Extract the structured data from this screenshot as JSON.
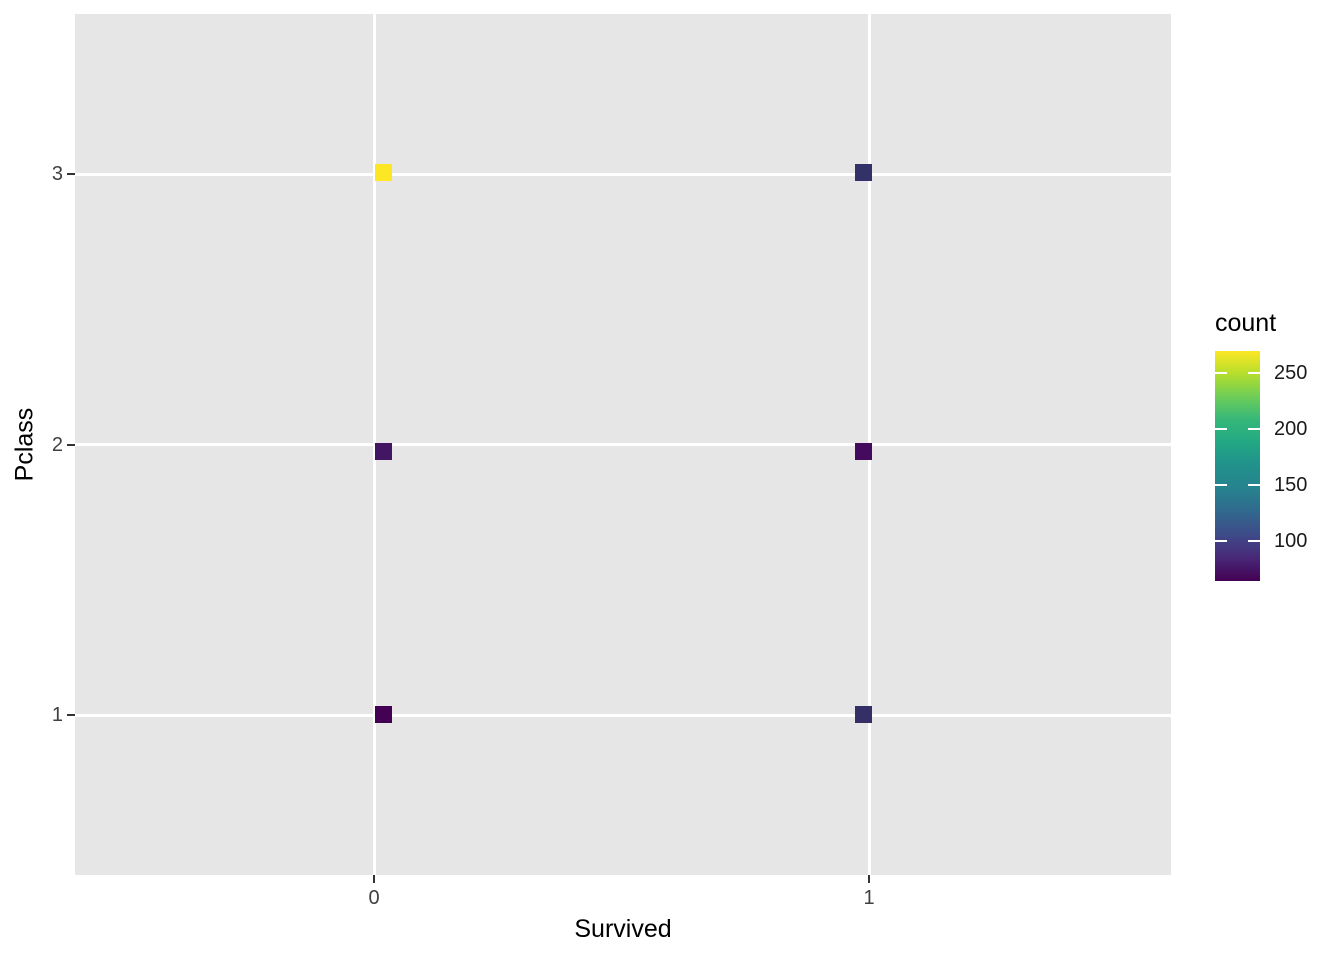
{
  "figure": {
    "background": "#FFFFFF",
    "panel_background": "#E6E6E6",
    "grid_color": "#FFFFFF",
    "axis_tick_color": "#333333",
    "tick_label_color": "#404040",
    "axis_title_color": "#000000"
  },
  "chart_data": {
    "type": "scatter",
    "marker": "square",
    "title": "",
    "xlabel": "Survived",
    "ylabel": "Pclass",
    "x_ticks": [
      "0",
      "1"
    ],
    "x_tick_values": [
      0,
      1
    ],
    "y_ticks": [
      "1",
      "2",
      "3"
    ],
    "y_tick_values": [
      1,
      2,
      3
    ],
    "xlim": [
      -0.6,
      1.6
    ],
    "ylim": [
      0.4,
      3.6
    ],
    "grid": "major-only",
    "legend": {
      "title": "count",
      "position": "right",
      "tick_labels": [
        "100",
        "150",
        "200",
        "250"
      ],
      "tick_values": [
        100,
        150,
        200,
        250
      ],
      "range": [
        64,
        270
      ],
      "colormap": "viridis",
      "colormap_stops": [
        "#440154",
        "#482878",
        "#3E4A89",
        "#31688E",
        "#26828E",
        "#21918C",
        "#22A884",
        "#35B779",
        "#6DCD59",
        "#B4DE2C",
        "#FDE725"
      ]
    },
    "points": [
      {
        "x": 0,
        "y": 1,
        "count": 64,
        "color": "#440154"
      },
      {
        "x": 1,
        "y": 1,
        "count": 122,
        "color": "#343067"
      },
      {
        "x": 0,
        "y": 2,
        "count": 90,
        "color": "#421663"
      },
      {
        "x": 1,
        "y": 2,
        "count": 83,
        "color": "#430A5D"
      },
      {
        "x": 0,
        "y": 3,
        "count": 270,
        "color": "#FDE725"
      },
      {
        "x": 1,
        "y": 3,
        "count": 85,
        "color": "#343169"
      }
    ]
  }
}
